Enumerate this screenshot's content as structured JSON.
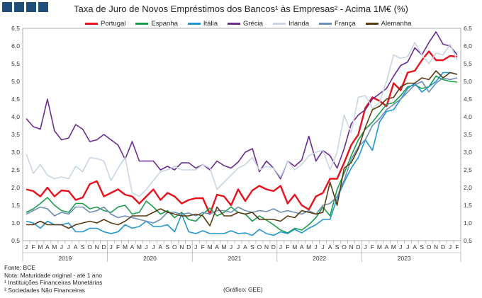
{
  "chart_data": {
    "type": "line",
    "title": "Taxa de Juro de Novos Empréstimos dos Bancos¹ às Empresas² - Acima 1M€ (%)",
    "ylim": [
      0.5,
      6.5
    ],
    "yticks": [
      "0,5",
      "1,0",
      "1,5",
      "2,0",
      "2,5",
      "3,0",
      "3,5",
      "4,0",
      "4,5",
      "5,0",
      "5,5",
      "6,0",
      "6,5"
    ],
    "month_labels": [
      "J",
      "F",
      "M",
      "A",
      "M",
      "J",
      "J",
      "A",
      "S",
      "O",
      "N",
      "D"
    ],
    "years": [
      "2019",
      "2020",
      "2021",
      "2022",
      "2023"
    ],
    "grid": false,
    "legend_position": "top",
    "series": [
      {
        "name": "Portugal",
        "color": "#e8121c",
        "values": [
          1.95,
          1.9,
          1.75,
          2.0,
          1.75,
          1.92,
          1.9,
          1.65,
          1.72,
          2.1,
          2.18,
          1.75,
          1.85,
          1.95,
          1.8,
          1.75,
          1.55,
          1.75,
          1.95,
          1.65,
          1.85,
          1.75,
          1.55,
          1.65,
          1.7,
          1.7,
          1.25,
          1.8,
          1.75,
          1.5,
          1.95,
          1.62,
          1.92,
          2.05,
          1.95,
          1.9,
          2.05,
          1.55,
          1.8,
          1.5,
          1.38,
          1.75,
          1.85,
          2.25,
          2.25,
          2.7,
          3.2,
          3.5,
          4.25,
          4.55,
          4.45,
          4.3,
          4.95,
          4.75,
          5.25,
          5.3,
          5.6,
          5.85,
          5.6,
          5.6,
          5.72,
          5.7
        ]
      },
      {
        "name": "Espanha",
        "color": "#1a9e4a",
        "values": [
          1.3,
          1.4,
          1.55,
          1.72,
          1.5,
          1.35,
          1.3,
          1.55,
          1.55,
          1.4,
          1.45,
          1.35,
          1.3,
          1.45,
          1.5,
          1.25,
          1.3,
          1.62,
          1.45,
          1.25,
          1.35,
          1.15,
          1.3,
          1.1,
          1.05,
          1.25,
          1.42,
          1.2,
          1.3,
          1.45,
          1.3,
          1.25,
          1.05,
          1.2,
          1.08,
          0.95,
          0.8,
          0.72,
          0.85,
          0.8,
          0.95,
          1.15,
          1.45,
          1.2,
          1.95,
          2.4,
          2.9,
          3.35,
          3.65,
          3.85,
          4.1,
          4.35,
          4.4,
          4.6,
          4.85,
          4.9,
          4.8,
          4.85,
          5.15,
          5.05,
          5.0,
          4.98
        ]
      },
      {
        "name": "Itália",
        "color": "#2196d3",
        "values": [
          1.05,
          1.0,
          0.85,
          1.05,
          0.95,
          0.95,
          1.0,
          0.75,
          0.75,
          0.85,
          0.85,
          0.75,
          0.7,
          0.75,
          0.95,
          0.85,
          0.9,
          1.05,
          0.9,
          0.9,
          0.95,
          0.75,
          1.25,
          0.75,
          0.7,
          0.78,
          0.7,
          0.7,
          0.7,
          0.78,
          0.7,
          0.72,
          0.65,
          0.82,
          0.7,
          0.65,
          0.75,
          0.7,
          0.82,
          0.72,
          0.85,
          0.95,
          1.1,
          1.1,
          1.7,
          2.15,
          2.55,
          2.85,
          3.35,
          3.05,
          3.85,
          4.15,
          4.2,
          4.5,
          4.8,
          4.95,
          4.7,
          4.85,
          5.0,
          5.25,
          5.25,
          5.2
        ]
      },
      {
        "name": "Grécia",
        "color": "#6b2c91",
        "values": [
          3.95,
          3.72,
          3.65,
          4.5,
          3.6,
          3.35,
          3.4,
          3.78,
          3.65,
          3.3,
          3.35,
          3.5,
          3.35,
          3.2,
          2.8,
          3.3,
          2.75,
          2.75,
          2.75,
          2.5,
          2.6,
          2.5,
          2.7,
          2.7,
          2.55,
          2.65,
          2.5,
          2.75,
          2.62,
          2.55,
          2.72,
          3.0,
          3.1,
          2.45,
          2.75,
          2.55,
          2.25,
          2.75,
          2.6,
          2.78,
          3.45,
          2.75,
          3.05,
          2.9,
          2.55,
          3.1,
          3.8,
          4.05,
          4.2,
          4.5,
          4.65,
          4.8,
          5.15,
          5.45,
          5.55,
          5.95,
          5.75,
          6.1,
          6.4,
          6.05,
          6.0,
          5.75
        ]
      },
      {
        "name": "Irlanda",
        "color": "#c8d6e4",
        "values": [
          2.95,
          2.4,
          2.65,
          2.35,
          2.25,
          2.3,
          2.25,
          2.6,
          2.45,
          2.85,
          2.82,
          2.75,
          2.2,
          2.55,
          2.85,
          1.85,
          1.75,
          1.95,
          2.2,
          2.45,
          2.5,
          2.6,
          2.5,
          2.5,
          2.5,
          2.65,
          2.55,
          1.95,
          2.15,
          2.35,
          2.55,
          2.65,
          2.85,
          2.5,
          2.6,
          2.55,
          2.3,
          2.75,
          2.5,
          2.65,
          2.9,
          3.0,
          3.05,
          2.5,
          3.0,
          4.05,
          3.55,
          4.55,
          4.6,
          4.25,
          4.4,
          5.0,
          5.75,
          5.65,
          5.7,
          6.1,
          5.75,
          5.5,
          5.8,
          5.75,
          6.05,
          5.6
        ]
      },
      {
        "name": "França",
        "color": "#6e8fb5",
        "values": [
          1.25,
          1.35,
          1.45,
          1.4,
          1.2,
          1.3,
          1.25,
          1.45,
          1.45,
          1.3,
          1.35,
          1.45,
          1.25,
          1.15,
          1.2,
          1.15,
          1.1,
          1.05,
          1.0,
          1.1,
          1.3,
          1.3,
          1.25,
          1.28,
          1.2,
          1.3,
          1.25,
          1.35,
          1.35,
          1.3,
          1.45,
          1.35,
          1.3,
          1.35,
          1.32,
          1.4,
          1.3,
          1.35,
          1.3,
          1.25,
          1.35,
          1.25,
          1.5,
          1.55,
          1.75,
          2.2,
          2.8,
          3.15,
          3.35,
          3.75,
          3.95,
          4.2,
          4.35,
          4.5,
          4.7,
          4.9,
          5.0,
          4.7,
          4.95,
          5.1,
          5.05,
          5.1
        ]
      },
      {
        "name": "Alemanha",
        "color": "#5a3a12",
        "values": [
          0.95,
          0.95,
          1.05,
          0.95,
          0.95,
          0.95,
          0.85,
          0.95,
          1.0,
          1.05,
          1.0,
          1.1,
          1.0,
          0.95,
          1.05,
          1.2,
          1.2,
          1.2,
          1.3,
          1.4,
          1.3,
          1.25,
          1.2,
          1.2,
          1.25,
          1.2,
          0.92,
          1.45,
          1.2,
          1.2,
          1.3,
          1.25,
          1.3,
          1.1,
          1.1,
          1.1,
          1.05,
          1.2,
          1.15,
          1.35,
          1.3,
          1.25,
          1.3,
          2.15,
          1.5,
          2.55,
          2.7,
          3.1,
          3.7,
          4.2,
          4.3,
          4.5,
          4.55,
          4.85,
          4.95,
          4.95,
          5.1,
          5.05,
          5.3,
          5.1,
          5.25,
          5.2
        ]
      }
    ],
    "source_lines": [
      "Fonte: BCE",
      "Nota: Maturidade original - até 1 ano",
      "¹ Instituições Financeiras Monetárias",
      "² Sociedades Não Financeiras"
    ],
    "credit": "(Gráfico: GEE)"
  }
}
